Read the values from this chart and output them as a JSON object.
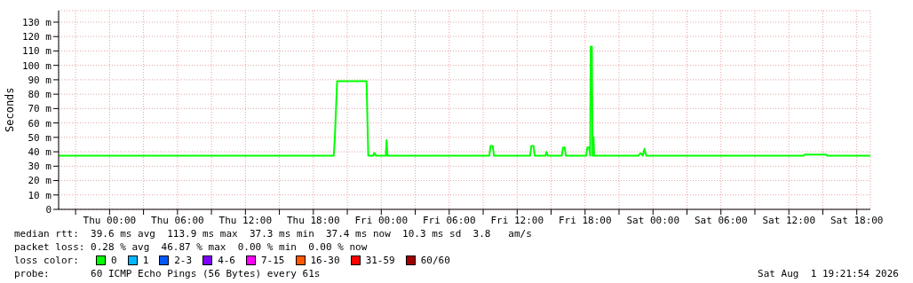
{
  "chart_data": {
    "type": "line",
    "ylabel": "Seconds",
    "legend_title": "loss color:",
    "legend": "bottom",
    "grid": true,
    "marker": "none",
    "line_style": "solid",
    "x": [
      "2026-07-29T19:30",
      "2026-07-30T19:48",
      "2026-07-30T19:54",
      "2026-07-30T20:06",
      "2026-07-30T22:42",
      "2026-07-30T22:51",
      "2026-07-30T23:18",
      "2026-07-30T23:21",
      "2026-07-30T23:27",
      "2026-07-30T23:30",
      "2026-07-31T00:24",
      "2026-07-31T00:28",
      "2026-07-31T00:33",
      "2026-07-31T09:33",
      "2026-07-31T09:39",
      "2026-07-31T09:51",
      "2026-07-31T09:57",
      "2026-07-31T13:09",
      "2026-07-31T13:15",
      "2026-07-31T13:27",
      "2026-07-31T13:33",
      "2026-07-31T14:30",
      "2026-07-31T14:36",
      "2026-07-31T14:42",
      "2026-07-31T15:57",
      "2026-07-31T16:03",
      "2026-07-31T16:12",
      "2026-07-31T16:18",
      "2026-07-31T18:06",
      "2026-07-31T18:12",
      "2026-07-31T18:21",
      "2026-07-31T18:27",
      "2026-07-31T18:30",
      "2026-07-31T18:36",
      "2026-07-31T18:40",
      "2026-07-31T18:43",
      "2026-07-31T18:45",
      "2026-07-31T18:48",
      "2026-07-31T22:42",
      "2026-07-31T22:54",
      "2026-07-31T23:06",
      "2026-07-31T23:15",
      "2026-07-31T23:24",
      "2026-08-01T13:18",
      "2026-08-01T13:24",
      "2026-08-01T15:18",
      "2026-08-01T15:24",
      "2026-08-01T19:12"
    ],
    "series": [
      {
        "name": "0",
        "color": "#00ff00",
        "values": [
          37.3,
          37.3,
          50,
          89,
          89,
          37.3,
          37.3,
          39,
          39,
          37.3,
          37.3,
          48,
          37.3,
          37.3,
          44,
          44,
          37.3,
          37.3,
          44,
          44,
          37.3,
          37.3,
          40,
          37.3,
          37.3,
          43,
          43,
          37.3,
          37.3,
          43,
          43,
          37.3,
          113,
          113,
          37.3,
          37.3,
          50,
          37.3,
          37.3,
          39,
          37.3,
          42,
          37.3,
          37.3,
          38,
          38,
          37.3,
          37.3
        ]
      },
      {
        "name": "1",
        "color": "#00b8ff",
        "values": [
          null,
          null,
          null,
          null,
          null,
          null,
          null,
          null,
          null,
          null,
          null,
          null,
          null,
          null,
          null,
          null,
          null,
          null,
          null,
          null,
          null,
          null,
          null,
          null,
          null,
          null,
          null,
          null,
          null,
          null,
          null,
          null,
          null,
          null,
          null,
          null,
          null,
          null,
          null,
          null,
          null,
          null,
          null,
          null,
          null,
          null,
          null,
          null
        ]
      },
      {
        "name": "2-3",
        "color": "#0059ff",
        "values": [
          null,
          null,
          null,
          null,
          null,
          null,
          null,
          null,
          null,
          null,
          null,
          null,
          null,
          null,
          null,
          null,
          null,
          null,
          null,
          null,
          null,
          null,
          null,
          null,
          null,
          null,
          null,
          null,
          null,
          null,
          null,
          null,
          null,
          null,
          null,
          null,
          null,
          null,
          null,
          null,
          null,
          null,
          null,
          null,
          null,
          null,
          null,
          null
        ]
      },
      {
        "name": "4-6",
        "color": "#7e00ff",
        "values": [
          null,
          null,
          null,
          null,
          null,
          null,
          null,
          null,
          null,
          null,
          null,
          null,
          null,
          null,
          null,
          null,
          null,
          null,
          null,
          null,
          null,
          null,
          null,
          null,
          null,
          null,
          null,
          null,
          null,
          null,
          null,
          null,
          null,
          null,
          null,
          null,
          null,
          null,
          null,
          null,
          null,
          null,
          null,
          null,
          null,
          null,
          null,
          null
        ]
      },
      {
        "name": "7-15",
        "color": "#ff00ff",
        "values": [
          null,
          null,
          null,
          null,
          null,
          null,
          null,
          null,
          null,
          null,
          null,
          null,
          null,
          null,
          null,
          null,
          null,
          null,
          null,
          null,
          null,
          null,
          null,
          null,
          null,
          null,
          null,
          null,
          null,
          null,
          null,
          null,
          null,
          null,
          null,
          null,
          null,
          null,
          null,
          null,
          null,
          null,
          null,
          null,
          null,
          null,
          null,
          null
        ]
      },
      {
        "name": "16-30",
        "color": "#ff5900",
        "values": [
          null,
          null,
          null,
          null,
          null,
          null,
          null,
          null,
          null,
          null,
          null,
          null,
          null,
          null,
          null,
          null,
          null,
          null,
          null,
          null,
          null,
          null,
          null,
          null,
          null,
          null,
          null,
          null,
          null,
          null,
          null,
          null,
          null,
          null,
          null,
          null,
          null,
          null,
          null,
          null,
          null,
          null,
          null,
          null,
          null,
          null,
          null,
          null
        ]
      },
      {
        "name": "31-59",
        "color": "#ff0000",
        "values": [
          null,
          null,
          null,
          null,
          null,
          null,
          null,
          null,
          null,
          null,
          null,
          null,
          null,
          null,
          null,
          null,
          null,
          null,
          null,
          null,
          null,
          null,
          null,
          null,
          null,
          null,
          null,
          null,
          null,
          null,
          null,
          null,
          null,
          null,
          null,
          null,
          null,
          null,
          null,
          null,
          null,
          null,
          null,
          null,
          null,
          null,
          null,
          null
        ]
      },
      {
        "name": "60/60",
        "color": "#a10000",
        "values": [
          null,
          null,
          null,
          null,
          null,
          null,
          null,
          null,
          null,
          null,
          null,
          null,
          null,
          null,
          null,
          null,
          null,
          null,
          null,
          null,
          null,
          null,
          null,
          null,
          null,
          null,
          null,
          null,
          null,
          null,
          null,
          null,
          null,
          null,
          null,
          null,
          null,
          null,
          null,
          null,
          null,
          null,
          null,
          null,
          null,
          null,
          null,
          null
        ]
      }
    ],
    "xlim": [
      "2026-07-29T19:30",
      "2026-08-01T19:12"
    ],
    "xticks": [
      {
        "value": "2026-07-29T21:00",
        "label": null
      },
      {
        "value": "2026-07-30T00:00",
        "label": "Thu 00:00"
      },
      {
        "value": "2026-07-30T03:00",
        "label": null
      },
      {
        "value": "2026-07-30T06:00",
        "label": "Thu 06:00"
      },
      {
        "value": "2026-07-30T09:00",
        "label": null
      },
      {
        "value": "2026-07-30T12:00",
        "label": "Thu 12:00"
      },
      {
        "value": "2026-07-30T15:00",
        "label": null
      },
      {
        "value": "2026-07-30T18:00",
        "label": "Thu 18:00"
      },
      {
        "value": "2026-07-30T21:00",
        "label": null
      },
      {
        "value": "2026-07-31T00:00",
        "label": "Fri 00:00"
      },
      {
        "value": "2026-07-31T03:00",
        "label": null
      },
      {
        "value": "2026-07-31T06:00",
        "label": "Fri 06:00"
      },
      {
        "value": "2026-07-31T09:00",
        "label": null
      },
      {
        "value": "2026-07-31T12:00",
        "label": "Fri 12:00"
      },
      {
        "value": "2026-07-31T15:00",
        "label": null
      },
      {
        "value": "2026-07-31T18:00",
        "label": "Fri 18:00"
      },
      {
        "value": "2026-07-31T21:00",
        "label": null
      },
      {
        "value": "2026-08-01T00:00",
        "label": "Sat 00:00"
      },
      {
        "value": "2026-08-01T03:00",
        "label": null
      },
      {
        "value": "2026-08-01T06:00",
        "label": "Sat 06:00"
      },
      {
        "value": "2026-08-01T09:00",
        "label": null
      },
      {
        "value": "2026-08-01T12:00",
        "label": "Sat 12:00"
      },
      {
        "value": "2026-08-01T15:00",
        "label": null
      },
      {
        "value": "2026-08-01T18:00",
        "label": "Sat 18:00"
      }
    ],
    "ylim": [
      0,
      138
    ],
    "yticks": [
      0,
      {
        "value": 10,
        "label": "10 m"
      },
      {
        "value": 20,
        "label": "20 m"
      },
      {
        "value": 30,
        "label": "30 m"
      },
      {
        "value": 40,
        "label": "40 m"
      },
      {
        "value": 50,
        "label": "50 m"
      },
      {
        "value": 60,
        "label": "60 m"
      },
      {
        "value": 70,
        "label": "70 m"
      },
      {
        "value": 80,
        "label": "80 m"
      },
      {
        "value": 90,
        "label": "90 m"
      },
      {
        "value": 100,
        "label": "100 m"
      },
      {
        "value": 110,
        "label": "110 m"
      },
      {
        "value": 120,
        "label": "120 m"
      },
      {
        "value": 130,
        "label": "130 m"
      }
    ],
    "annotations": [
      "median rtt:  39.6 ms avg  113.9 ms max  37.3 ms min  37.4 ms now  10.3 ms sd  3.8   am/s",
      "packet loss: 0.28 % avg  46.87 % max  0.00 % min  0.00 % now",
      "probe:       60 ICMP Echo Pings (56 Bytes) every 61s",
      "Sat Aug  1 19:21:54 2026"
    ]
  }
}
